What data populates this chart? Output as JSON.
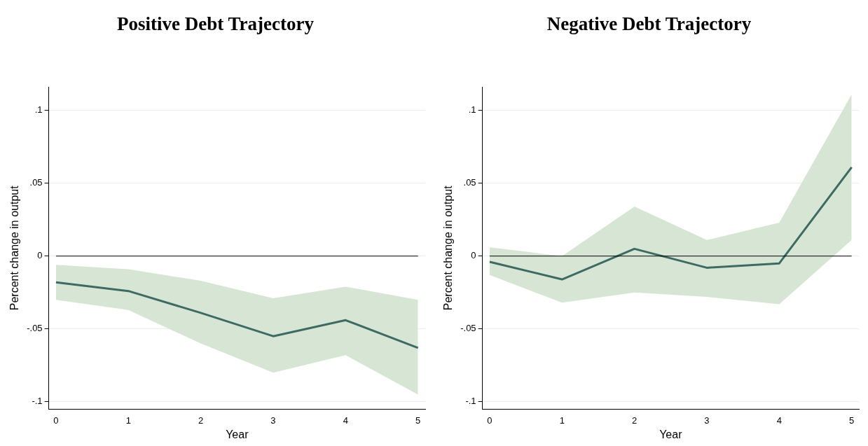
{
  "chart_data": [
    {
      "type": "line",
      "title": "Positive Debt Trajectory",
      "xlabel": "Year",
      "ylabel": "Percent change in output",
      "x": [
        0,
        1,
        2,
        3,
        4,
        5
      ],
      "series": [
        {
          "color": "#3d6b63",
          "values": [
            -0.018,
            -0.024,
            -0.039,
            -0.055,
            -0.044,
            -0.063
          ],
          "lower": [
            -0.03,
            -0.037,
            -0.06,
            -0.08,
            -0.068,
            -0.095
          ],
          "upper": [
            -0.006,
            -0.009,
            -0.017,
            -0.029,
            -0.021,
            -0.03
          ]
        }
      ],
      "xlim": [
        -0.1,
        5.1
      ],
      "xticks": [
        0,
        1,
        2,
        3,
        4,
        5
      ],
      "ylim": [
        -0.105,
        0.116
      ],
      "yticks": [
        {
          "value": -0.1,
          "label": "-.1"
        },
        {
          "value": -0.05,
          "label": "-.05"
        },
        0,
        {
          "value": 0.05,
          "label": ".05"
        },
        {
          "value": 0.1,
          "label": ".1"
        }
      ],
      "ref_lines": [
        {
          "axis": "y",
          "value": 0,
          "color": "#000000"
        }
      ],
      "grid": "y",
      "marker": "none",
      "legend": false
    },
    {
      "type": "line",
      "title": "Negative Debt Trajectory",
      "xlabel": "Year",
      "ylabel": "Percent change in output",
      "x": [
        0,
        1,
        2,
        3,
        4,
        5
      ],
      "series": [
        {
          "color": "#3d6b63",
          "values": [
            -0.004,
            -0.016,
            0.005,
            -0.008,
            -0.005,
            0.061
          ],
          "lower": [
            -0.013,
            -0.032,
            -0.025,
            -0.028,
            -0.033,
            0.011
          ],
          "upper": [
            0.006,
            0.0,
            0.034,
            0.011,
            0.023,
            0.111
          ]
        }
      ],
      "xlim": [
        -0.1,
        5.1
      ],
      "xticks": [
        0,
        1,
        2,
        3,
        4,
        5
      ],
      "ylim": [
        -0.105,
        0.116
      ],
      "yticks": [
        {
          "value": -0.1,
          "label": "-.1"
        },
        {
          "value": -0.05,
          "label": "-.05"
        },
        0,
        {
          "value": 0.05,
          "label": ".05"
        },
        {
          "value": 0.1,
          "label": ".1"
        }
      ],
      "ref_lines": [
        {
          "axis": "y",
          "value": 0,
          "color": "#000000"
        }
      ],
      "grid": "y",
      "marker": "none",
      "legend": false
    }
  ]
}
